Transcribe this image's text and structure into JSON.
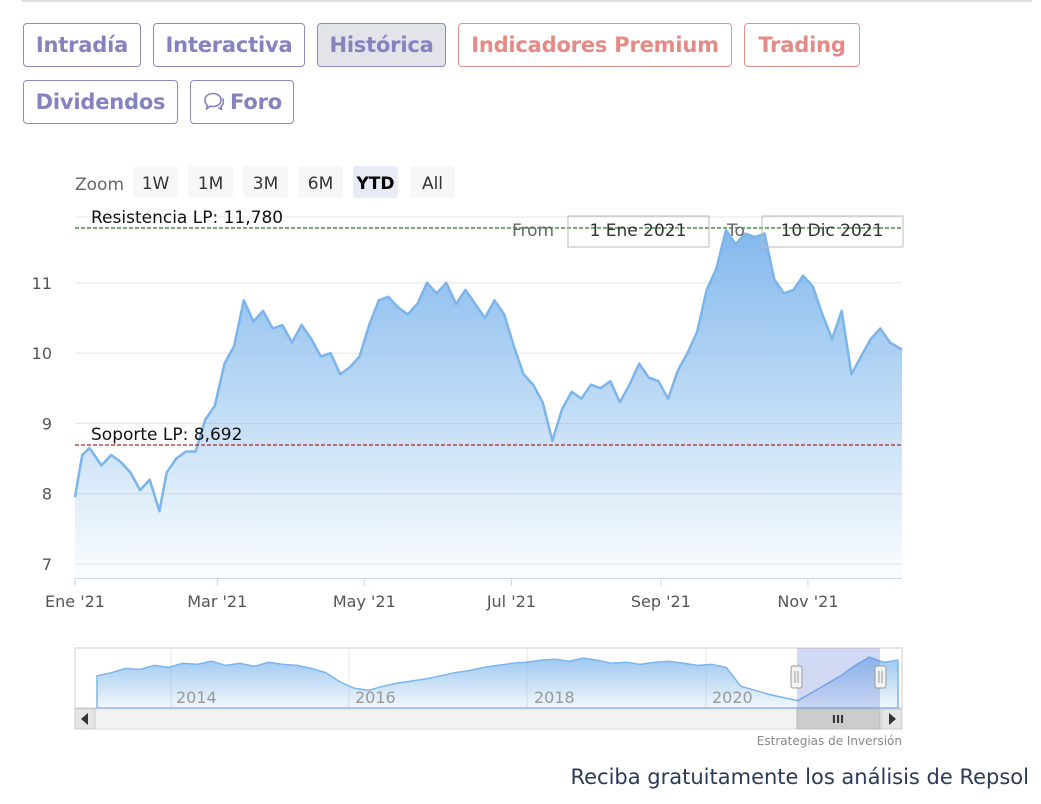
{
  "tabs": [
    {
      "label": "Intradía",
      "style": "purple",
      "active": false
    },
    {
      "label": "Interactiva",
      "style": "purple",
      "active": false
    },
    {
      "label": "Histórica",
      "style": "purple",
      "active": true
    },
    {
      "label": "Indicadores Premium",
      "style": "red",
      "active": false
    },
    {
      "label": "Trading",
      "style": "red",
      "active": false
    },
    {
      "label": "Dividendos",
      "style": "purple",
      "active": false
    },
    {
      "label": "Foro",
      "style": "purple",
      "active": false,
      "icon": "chat-bubbles-icon"
    }
  ],
  "chart": {
    "zoom_label": "Zoom",
    "zoom_buttons": [
      "1W",
      "1M",
      "3M",
      "6M",
      "YTD",
      "All"
    ],
    "zoom_selected": "YTD",
    "from_label": "From",
    "from_value": "1 Ene 2021",
    "to_label": "To",
    "to_value": "10 Dic 2021",
    "credit": "Estrategias de Inversión",
    "navigator_labels": [
      "2014",
      "2016",
      "2018",
      "2020"
    ],
    "handle_glyph": "III",
    "colors": {
      "line": "#7cb5ec",
      "resistance": "#2e8b2e",
      "support": "#a52a2a",
      "grid": "#e6e6e6"
    }
  },
  "chart_data": {
    "type": "area",
    "title": "",
    "xlabel": "",
    "ylabel": "",
    "x_tick_labels": [
      "Ene '21",
      "Mar '21",
      "May '21",
      "Jul '21",
      "Sep '21",
      "Nov '21"
    ],
    "y_tick_labels": [
      "7",
      "8",
      "9",
      "10",
      "11"
    ],
    "ylim": [
      6.8,
      11.95
    ],
    "xlim": [
      "2021-01-01",
      "2021-12-10"
    ],
    "grid": true,
    "series": [
      {
        "x": [
          "2021-01-01",
          "2021-01-04",
          "2021-01-07",
          "2021-01-12",
          "2021-01-16",
          "2021-01-20",
          "2021-01-24",
          "2021-01-28",
          "2021-02-01",
          "2021-02-05",
          "2021-02-08",
          "2021-02-12",
          "2021-02-16",
          "2021-02-20",
          "2021-02-24",
          "2021-02-28",
          "2021-03-04",
          "2021-03-08",
          "2021-03-12",
          "2021-03-16",
          "2021-03-20",
          "2021-03-24",
          "2021-03-28",
          "2021-04-01",
          "2021-04-05",
          "2021-04-09",
          "2021-04-13",
          "2021-04-17",
          "2021-04-21",
          "2021-04-25",
          "2021-04-29",
          "2021-05-03",
          "2021-05-07",
          "2021-05-11",
          "2021-05-15",
          "2021-05-19",
          "2021-05-23",
          "2021-05-27",
          "2021-05-31",
          "2021-06-04",
          "2021-06-08",
          "2021-06-12",
          "2021-06-16",
          "2021-06-20",
          "2021-06-24",
          "2021-06-28",
          "2021-07-02",
          "2021-07-06",
          "2021-07-10",
          "2021-07-14",
          "2021-07-18",
          "2021-07-22",
          "2021-07-26",
          "2021-07-30",
          "2021-08-03",
          "2021-08-07",
          "2021-08-11",
          "2021-08-15",
          "2021-08-19",
          "2021-08-23",
          "2021-08-27",
          "2021-08-31",
          "2021-09-04",
          "2021-09-08",
          "2021-09-12",
          "2021-09-16",
          "2021-09-20",
          "2021-09-24",
          "2021-09-28",
          "2021-10-02",
          "2021-10-06",
          "2021-10-10",
          "2021-10-14",
          "2021-10-18",
          "2021-10-22",
          "2021-10-26",
          "2021-10-30",
          "2021-11-03",
          "2021-11-07",
          "2021-11-11",
          "2021-11-15",
          "2021-11-19",
          "2021-11-23",
          "2021-11-27",
          "2021-12-01",
          "2021-12-05",
          "2021-12-10"
        ],
        "y": [
          7.95,
          8.55,
          8.65,
          8.4,
          8.55,
          8.45,
          8.3,
          8.05,
          8.2,
          7.75,
          8.3,
          8.5,
          8.6,
          8.6,
          9.05,
          9.25,
          9.85,
          10.1,
          10.75,
          10.45,
          10.6,
          10.35,
          10.4,
          10.15,
          10.4,
          10.2,
          9.95,
          10.0,
          9.7,
          9.8,
          9.95,
          10.4,
          10.75,
          10.8,
          10.65,
          10.55,
          10.7,
          11.0,
          10.85,
          11.0,
          10.7,
          10.9,
          10.7,
          10.5,
          10.75,
          10.55,
          10.1,
          9.7,
          9.55,
          9.3,
          8.75,
          9.2,
          9.45,
          9.35,
          9.55,
          9.5,
          9.6,
          9.3,
          9.55,
          9.85,
          9.65,
          9.6,
          9.35,
          9.75,
          10.0,
          10.3,
          10.9,
          11.2,
          11.75,
          11.55,
          11.7,
          11.65,
          11.7,
          11.05,
          10.85,
          10.9,
          11.1,
          10.95,
          10.55,
          10.2,
          10.6,
          9.7,
          9.95,
          10.2,
          10.35,
          10.15,
          10.05
        ]
      }
    ],
    "annotations": [
      {
        "label": "Resistencia LP: 11,780",
        "value": 11.78
      },
      {
        "label": "Soporte LP: 8,692",
        "value": 8.692
      }
    ]
  },
  "footer": {
    "cta": "Reciba gratuitamente los análisis de Repsol"
  }
}
